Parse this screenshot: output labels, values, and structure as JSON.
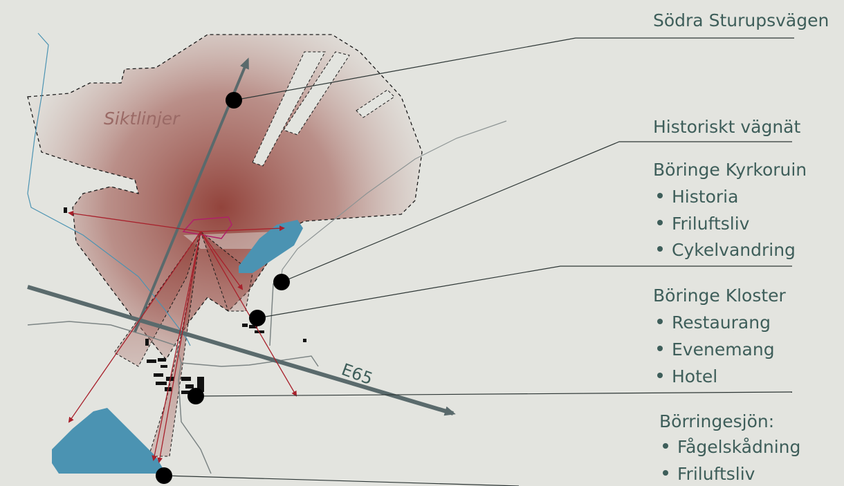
{
  "map": {
    "sightlines_label": "Siktlinjer",
    "road_label": "E65"
  },
  "legend": {
    "road_title": "Södra Sturupsvägen",
    "historic_title": "Historiskt vägnät",
    "church": {
      "title": "Böringe Kyrkoruin",
      "items": [
        "Historia",
        "Friluftsliv",
        "Cykelvandring"
      ]
    },
    "monastery": {
      "title": "Böringe Kloster",
      "items": [
        "Restaurang",
        "Evenemang",
        "Hotel"
      ]
    },
    "lake": {
      "title": "Börringesjön:",
      "items": [
        "Fågelskådning",
        "Friluftsliv"
      ]
    }
  },
  "colors": {
    "background": "#e3e4df",
    "text": "#3e5e5a",
    "water": "#4b93b2",
    "sightline_fill": "#8e3b33",
    "sightline_arrow": "#a8202b",
    "road": "#5a6a6c",
    "marker": "#000000"
  }
}
